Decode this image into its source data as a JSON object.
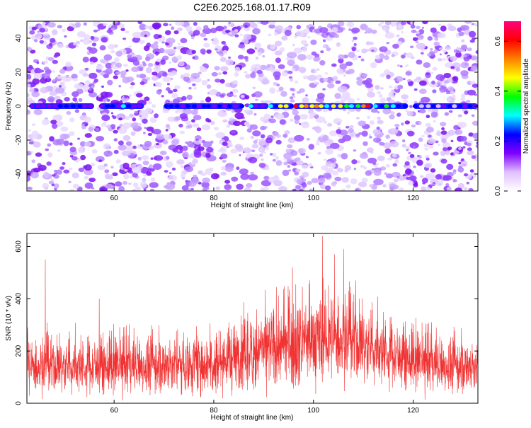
{
  "title": "C2E6.2025.168.01.17.R09",
  "chart_data": [
    {
      "type": "heatmap",
      "xlabel": "Height of straight line (km)",
      "ylabel": "Frequency (Hz)",
      "xlim": [
        42.5,
        133
      ],
      "ylim": [
        -50,
        50
      ],
      "xticks": [
        60,
        80,
        100,
        120
      ],
      "yticks": [
        -40,
        -20,
        0,
        20,
        40
      ],
      "colorbar": {
        "label": "Normalized spectral amplitude",
        "range": [
          0,
          0.68
        ],
        "ticks": [
          0.0,
          0.2,
          0.4,
          0.6
        ],
        "colormap": [
          "#ffffff",
          "#e0c0ff",
          "#8000ff",
          "#0000ff",
          "#00ffff",
          "#00ff00",
          "#ffff00",
          "#ff8000",
          "#ff0000",
          "#ff0080"
        ]
      },
      "ridge": {
        "frequency": 0,
        "segments": [
          {
            "x": [
              43,
              56
            ],
            "amplitude": 0.18
          },
          {
            "x": [
              57,
              66
            ],
            "amplitude": 0.22
          },
          {
            "x": [
              70,
              86
            ],
            "amplitude": 0.2
          },
          {
            "x": [
              87,
              91
            ],
            "amplitude": 0.28
          },
          {
            "x": [
              91,
              96
            ],
            "amplitude": 0.35
          },
          {
            "x": [
              96,
              112
            ],
            "amplitude": 0.55
          },
          {
            "x": [
              112,
              119
            ],
            "amplitude": 0.33
          },
          {
            "x": [
              120,
              133
            ],
            "amplitude": 0.18
          }
        ]
      }
    },
    {
      "type": "line",
      "xlabel": "Height of straight line (km)",
      "ylabel": "SNR (10 * v/v)",
      "xlim": [
        42.5,
        133
      ],
      "ylim": [
        0,
        650
      ],
      "xticks": [
        60,
        80,
        100,
        120
      ],
      "yticks": [
        0,
        200,
        400,
        600
      ],
      "color": "#f03232",
      "envelope": {
        "x": [
          43,
          50,
          60,
          70,
          80,
          85,
          90,
          95,
          100,
          103,
          106,
          110,
          115,
          120,
          125,
          133
        ],
        "base": [
          30,
          35,
          35,
          40,
          45,
          55,
          70,
          85,
          95,
          100,
          95,
          80,
          65,
          50,
          40,
          35
        ],
        "mean": [
          140,
          140,
          140,
          145,
          160,
          180,
          205,
          225,
          240,
          250,
          245,
          220,
          190,
          160,
          145,
          140
        ],
        "upper": [
          250,
          250,
          255,
          265,
          300,
          330,
          370,
          400,
          420,
          430,
          420,
          380,
          330,
          280,
          260,
          250
        ]
      },
      "peaks": [
        {
          "x": 46.2,
          "y": 550
        },
        {
          "x": 57.0,
          "y": 400
        },
        {
          "x": 95.8,
          "y": 520
        },
        {
          "x": 101.8,
          "y": 640
        },
        {
          "x": 104.2,
          "y": 570
        },
        {
          "x": 106.1,
          "y": 590
        },
        {
          "x": 108.5,
          "y": 470
        }
      ]
    }
  ]
}
